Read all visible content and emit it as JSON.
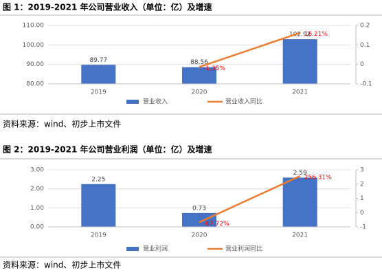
{
  "chart_data": [
    {
      "type": "bar",
      "title": "图 1：2019-2021 年公司营业收入（单位：亿）及增速",
      "categories": [
        "2019",
        "2020",
        "2021"
      ],
      "series": [
        {
          "name": "营业收入",
          "color": "#4472c4",
          "values": [
            89.77,
            88.56,
            102.92
          ]
        },
        {
          "name": "营业收入同比",
          "color": "#ed7d31",
          "type": "line",
          "axis": "y2",
          "values": [
            null,
            -0.0135,
            0.1621
          ],
          "value_labels": [
            null,
            "-1.35%",
            "16.21%"
          ]
        }
      ],
      "ylim": [
        80,
        110
      ],
      "yticks": [
        {
          "value": 80,
          "label": "80.00"
        },
        {
          "value": 90,
          "label": "90.00"
        },
        {
          "value": 100,
          "label": "100.00"
        },
        {
          "value": 110,
          "label": "110.00"
        }
      ],
      "y2lim": [
        -0.1,
        0.2
      ],
      "y2ticks": [
        -0.1,
        0,
        0.1,
        0.2
      ],
      "grid": true,
      "legend": "bottom",
      "source": "资料来源：wind、初步上市文件"
    },
    {
      "type": "bar",
      "title": "图 2：2019-2021 年公司营业利润（单位：亿）及增速",
      "categories": [
        "2019",
        "2020",
        "2021"
      ],
      "series": [
        {
          "name": "营业利润",
          "color": "#4472c4",
          "values": [
            2.25,
            0.73,
            2.59
          ]
        },
        {
          "name": "营业利润同比",
          "color": "#ed7d31",
          "type": "line",
          "axis": "y2",
          "values": [
            null,
            -0.6772,
            2.5631
          ],
          "value_labels": [
            null,
            "-67.72%",
            "256.31%"
          ]
        }
      ],
      "ylim": [
        0,
        3
      ],
      "yticks": [
        {
          "value": 0,
          "label": "0.00"
        },
        {
          "value": 1,
          "label": "1.00"
        },
        {
          "value": 2,
          "label": "2.00"
        },
        {
          "value": 3,
          "label": "3.00"
        }
      ],
      "y2lim": [
        -1,
        3
      ],
      "y2ticks": [
        -1,
        0,
        1,
        2,
        3
      ],
      "grid": true,
      "legend": "bottom",
      "source": "资料来源：wind、初步上市文件"
    }
  ]
}
